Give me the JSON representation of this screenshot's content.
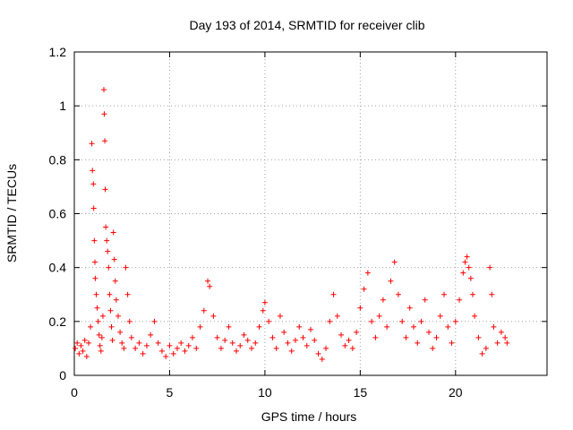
{
  "chart_data": {
    "type": "scatter",
    "title": "Day 193 of 2014, SRMTID for receiver clib",
    "xlabel": "GPS time / hours",
    "ylabel": "SRMTID / TECUs",
    "xlim": [
      0,
      24.8
    ],
    "ylim": [
      0,
      1.2
    ],
    "xticks": [
      "0",
      "5",
      "10",
      "15",
      "20"
    ],
    "xtick_values": [
      0,
      5,
      10,
      15,
      20
    ],
    "yticks": [
      "0",
      "0.2",
      "0.4",
      "0.6",
      "0.8",
      "1",
      "1.2"
    ],
    "ytick_values": [
      0,
      0.2,
      0.4,
      0.6,
      0.8,
      1.0,
      1.2
    ],
    "grid": true,
    "marker": "plus",
    "color": "#ff0000",
    "series": [
      {
        "name": "SRMTID",
        "points": [
          [
            0.05,
            0.1
          ],
          [
            0.15,
            0.12
          ],
          [
            0.25,
            0.08
          ],
          [
            0.35,
            0.11
          ],
          [
            0.45,
            0.09
          ],
          [
            0.55,
            0.13
          ],
          [
            0.65,
            0.07
          ],
          [
            0.75,
            0.12
          ],
          [
            0.85,
            0.18
          ],
          [
            0.92,
            0.86
          ],
          [
            0.95,
            0.76
          ],
          [
            1.0,
            0.71
          ],
          [
            1.02,
            0.62
          ],
          [
            1.05,
            0.5
          ],
          [
            1.08,
            0.42
          ],
          [
            1.1,
            0.36
          ],
          [
            1.15,
            0.3
          ],
          [
            1.2,
            0.25
          ],
          [
            1.25,
            0.2
          ],
          [
            1.3,
            0.15
          ],
          [
            1.35,
            0.11
          ],
          [
            1.4,
            0.09
          ],
          [
            1.45,
            0.14
          ],
          [
            1.5,
            0.22
          ],
          [
            1.55,
            1.06
          ],
          [
            1.57,
            0.97
          ],
          [
            1.6,
            0.87
          ],
          [
            1.62,
            0.69
          ],
          [
            1.65,
            0.55
          ],
          [
            1.7,
            0.5
          ],
          [
            1.75,
            0.46
          ],
          [
            1.8,
            0.4
          ],
          [
            1.85,
            0.3
          ],
          [
            1.9,
            0.24
          ],
          [
            1.95,
            0.18
          ],
          [
            2.0,
            0.13
          ],
          [
            2.05,
            0.53
          ],
          [
            2.1,
            0.43
          ],
          [
            2.15,
            0.35
          ],
          [
            2.2,
            0.28
          ],
          [
            2.3,
            0.22
          ],
          [
            2.4,
            0.16
          ],
          [
            2.5,
            0.12
          ],
          [
            2.6,
            0.1
          ],
          [
            2.7,
            0.4
          ],
          [
            2.8,
            0.3
          ],
          [
            2.9,
            0.2
          ],
          [
            3.0,
            0.14
          ],
          [
            3.2,
            0.1
          ],
          [
            3.4,
            0.12
          ],
          [
            3.6,
            0.08
          ],
          [
            3.8,
            0.11
          ],
          [
            4.0,
            0.15
          ],
          [
            4.2,
            0.2
          ],
          [
            4.4,
            0.12
          ],
          [
            4.6,
            0.09
          ],
          [
            4.8,
            0.07
          ],
          [
            5.0,
            0.11
          ],
          [
            5.2,
            0.08
          ],
          [
            5.4,
            0.1
          ],
          [
            5.6,
            0.12
          ],
          [
            5.8,
            0.09
          ],
          [
            6.0,
            0.11
          ],
          [
            6.2,
            0.14
          ],
          [
            6.4,
            0.1
          ],
          [
            6.6,
            0.18
          ],
          [
            6.8,
            0.24
          ],
          [
            7.0,
            0.35
          ],
          [
            7.1,
            0.33
          ],
          [
            7.3,
            0.22
          ],
          [
            7.5,
            0.14
          ],
          [
            7.7,
            0.1
          ],
          [
            7.9,
            0.13
          ],
          [
            8.1,
            0.18
          ],
          [
            8.3,
            0.12
          ],
          [
            8.5,
            0.09
          ],
          [
            8.7,
            0.11
          ],
          [
            8.9,
            0.15
          ],
          [
            9.1,
            0.13
          ],
          [
            9.3,
            0.1
          ],
          [
            9.5,
            0.12
          ],
          [
            9.7,
            0.18
          ],
          [
            9.9,
            0.24
          ],
          [
            10.0,
            0.27
          ],
          [
            10.2,
            0.2
          ],
          [
            10.4,
            0.14
          ],
          [
            10.6,
            0.1
          ],
          [
            10.8,
            0.22
          ],
          [
            11.0,
            0.16
          ],
          [
            11.2,
            0.12
          ],
          [
            11.4,
            0.09
          ],
          [
            11.6,
            0.13
          ],
          [
            11.8,
            0.18
          ],
          [
            12.0,
            0.14
          ],
          [
            12.2,
            0.11
          ],
          [
            12.4,
            0.17
          ],
          [
            12.6,
            0.13
          ],
          [
            12.8,
            0.08
          ],
          [
            13.0,
            0.06
          ],
          [
            13.2,
            0.1
          ],
          [
            13.4,
            0.2
          ],
          [
            13.6,
            0.3
          ],
          [
            13.8,
            0.22
          ],
          [
            14.0,
            0.15
          ],
          [
            14.2,
            0.11
          ],
          [
            14.4,
            0.13
          ],
          [
            14.6,
            0.1
          ],
          [
            14.8,
            0.16
          ],
          [
            15.0,
            0.25
          ],
          [
            15.2,
            0.32
          ],
          [
            15.4,
            0.38
          ],
          [
            15.6,
            0.2
          ],
          [
            15.8,
            0.14
          ],
          [
            16.0,
            0.22
          ],
          [
            16.2,
            0.28
          ],
          [
            16.4,
            0.18
          ],
          [
            16.6,
            0.35
          ],
          [
            16.8,
            0.42
          ],
          [
            17.0,
            0.3
          ],
          [
            17.2,
            0.2
          ],
          [
            17.4,
            0.14
          ],
          [
            17.6,
            0.25
          ],
          [
            17.8,
            0.18
          ],
          [
            18.0,
            0.12
          ],
          [
            18.2,
            0.2
          ],
          [
            18.4,
            0.28
          ],
          [
            18.6,
            0.16
          ],
          [
            18.8,
            0.1
          ],
          [
            19.0,
            0.14
          ],
          [
            19.2,
            0.22
          ],
          [
            19.4,
            0.3
          ],
          [
            19.6,
            0.18
          ],
          [
            19.8,
            0.12
          ],
          [
            20.0,
            0.2
          ],
          [
            20.2,
            0.28
          ],
          [
            20.4,
            0.38
          ],
          [
            20.5,
            0.42
          ],
          [
            20.6,
            0.44
          ],
          [
            20.7,
            0.4
          ],
          [
            20.8,
            0.36
          ],
          [
            20.9,
            0.3
          ],
          [
            21.0,
            0.22
          ],
          [
            21.2,
            0.14
          ],
          [
            21.4,
            0.08
          ],
          [
            21.6,
            0.1
          ],
          [
            21.8,
            0.4
          ],
          [
            21.9,
            0.3
          ],
          [
            22.0,
            0.18
          ],
          [
            22.2,
            0.12
          ],
          [
            22.4,
            0.16
          ],
          [
            22.6,
            0.14
          ],
          [
            22.7,
            0.12
          ]
        ]
      }
    ]
  }
}
